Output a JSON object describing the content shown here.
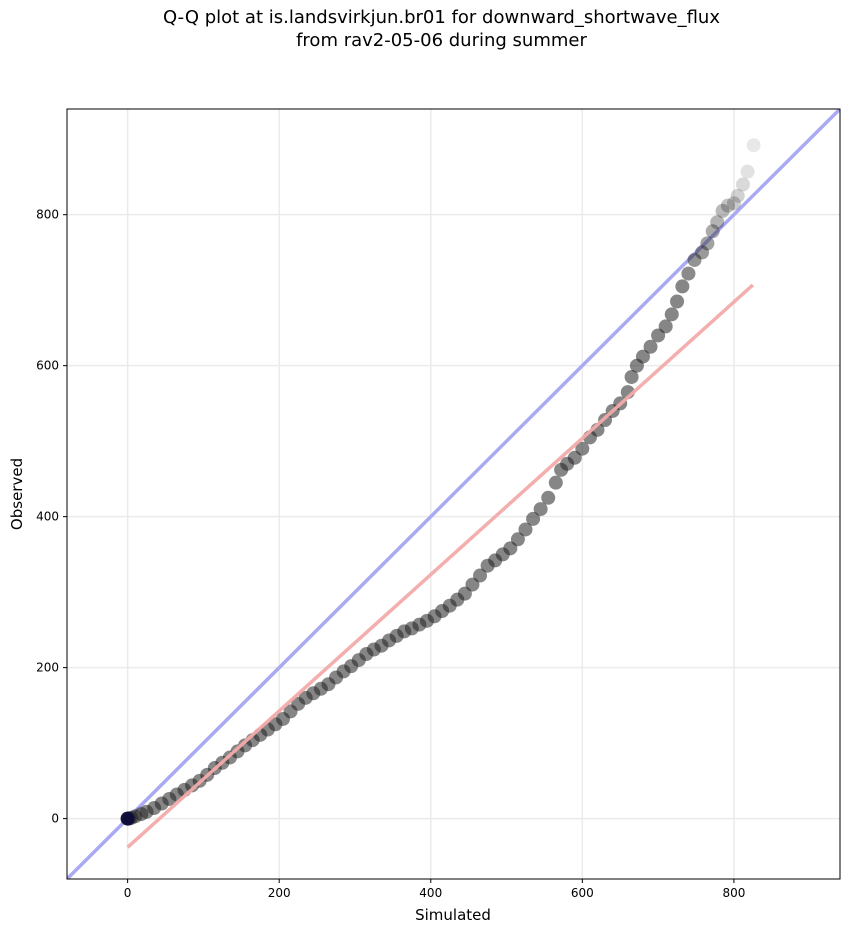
{
  "chart_data": {
    "type": "scatter",
    "title": "Q-Q plot at is.landsvirkjun.br01 for downward_shortwave_flux",
    "subtitle": "from rav2-05-06 during summer",
    "xlabel": "Simulated",
    "ylabel": "Observed",
    "xlim": [
      -80,
      940
    ],
    "ylim": [
      -80,
      940
    ],
    "xticks": [
      0,
      200,
      400,
      600,
      800
    ],
    "yticks": [
      0,
      200,
      400,
      600,
      800
    ],
    "grid": true,
    "colors": {
      "points": "#222222",
      "reference_line": "#aaaaf2",
      "fit_line": "#f4aaaa",
      "grid": "#ebebeb"
    },
    "reference_line": {
      "from": [
        -80,
        -80
      ],
      "to": [
        940,
        940
      ]
    },
    "fit_line": {
      "from": [
        0,
        -38
      ],
      "to": [
        825,
        707
      ]
    },
    "points": [
      [
        0,
        0
      ],
      [
        2,
        0
      ],
      [
        5,
        1
      ],
      [
        10,
        3
      ],
      [
        18,
        6
      ],
      [
        25,
        9
      ],
      [
        35,
        14
      ],
      [
        45,
        20
      ],
      [
        55,
        26
      ],
      [
        65,
        32
      ],
      [
        75,
        38
      ],
      [
        85,
        44
      ],
      [
        95,
        50
      ],
      [
        105,
        58
      ],
      [
        115,
        67
      ],
      [
        125,
        74
      ],
      [
        135,
        81
      ],
      [
        145,
        89
      ],
      [
        155,
        97
      ],
      [
        165,
        104
      ],
      [
        175,
        111
      ],
      [
        185,
        118
      ],
      [
        195,
        125
      ],
      [
        205,
        132
      ],
      [
        215,
        142
      ],
      [
        225,
        152
      ],
      [
        235,
        160
      ],
      [
        245,
        166
      ],
      [
        255,
        172
      ],
      [
        265,
        178
      ],
      [
        275,
        187
      ],
      [
        285,
        195
      ],
      [
        295,
        202
      ],
      [
        305,
        210
      ],
      [
        315,
        218
      ],
      [
        325,
        224
      ],
      [
        335,
        229
      ],
      [
        345,
        236
      ],
      [
        355,
        242
      ],
      [
        365,
        248
      ],
      [
        375,
        252
      ],
      [
        385,
        257
      ],
      [
        395,
        262
      ],
      [
        405,
        268
      ],
      [
        415,
        275
      ],
      [
        425,
        282
      ],
      [
        435,
        290
      ],
      [
        445,
        298
      ],
      [
        455,
        310
      ],
      [
        465,
        322
      ],
      [
        475,
        335
      ],
      [
        485,
        342
      ],
      [
        495,
        350
      ],
      [
        505,
        358
      ],
      [
        515,
        370
      ],
      [
        525,
        383
      ],
      [
        535,
        397
      ],
      [
        545,
        410
      ],
      [
        555,
        425
      ],
      [
        565,
        445
      ],
      [
        572,
        462
      ],
      [
        580,
        470
      ],
      [
        590,
        478
      ],
      [
        600,
        490
      ],
      [
        610,
        505
      ],
      [
        620,
        515
      ],
      [
        630,
        528
      ],
      [
        640,
        540
      ],
      [
        650,
        550
      ],
      [
        660,
        565
      ],
      [
        665,
        585
      ],
      [
        672,
        600
      ],
      [
        680,
        612
      ],
      [
        690,
        625
      ],
      [
        700,
        640
      ],
      [
        710,
        652
      ],
      [
        718,
        668
      ],
      [
        725,
        685
      ],
      [
        732,
        705
      ],
      [
        740,
        722
      ],
      [
        748,
        740
      ],
      [
        758,
        750
      ],
      [
        765,
        762
      ],
      [
        772,
        778
      ],
      [
        778,
        790
      ],
      [
        785,
        805
      ],
      [
        792,
        812
      ],
      [
        800,
        815
      ],
      [
        805,
        825
      ],
      [
        812,
        840
      ],
      [
        818,
        857
      ],
      [
        826,
        892
      ]
    ]
  }
}
